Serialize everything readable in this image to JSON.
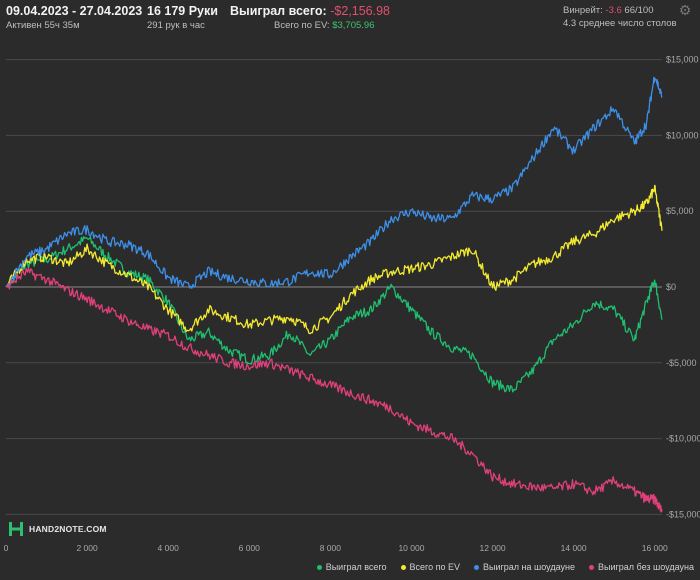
{
  "header": {
    "date_range": "09.04.2023 - 27.04.2023",
    "active_time": "Активен 55ч 35м",
    "hands": "16 179 Руки",
    "hands_per_hour": "291 рук в час",
    "won_total_label": "Выиграл всего:",
    "won_total_value": "-$2,156.98",
    "ev_total_label": "Всего по EV:",
    "ev_total_value": "$3,705.96",
    "winrate_label": "Винрейт:",
    "winrate_value": "-3.6",
    "winrate_suffix": "66/100",
    "avg_tables": "4.3 среднее число столов"
  },
  "logo": {
    "text": "HAND2NOTE.COM"
  },
  "colors": {
    "won": "#1fbf6f",
    "ev": "#f2ea2e",
    "showdown": "#3d8fe8",
    "non_showdown": "#e0407a",
    "grid": "#4a4a4a",
    "zero_line": "#8a8a8a"
  },
  "chart_data": {
    "type": "line",
    "x_ticks": [
      0,
      2000,
      4000,
      6000,
      8000,
      10000,
      12000,
      14000,
      16000
    ],
    "x_tick_labels": [
      "0",
      "2 000",
      "4 000",
      "6 000",
      "8 000",
      "10 000",
      "12 000",
      "14 000",
      "16 000"
    ],
    "y_ticks": [
      15000,
      10000,
      5000,
      0,
      -5000,
      -10000,
      -15000
    ],
    "y_tick_labels": [
      "$15,000",
      "$10,000",
      "$5,000",
      "$0",
      "-$5,000",
      "-$10,000",
      "-$15,000"
    ],
    "xlim": [
      0,
      16179
    ],
    "ylim": [
      -15500,
      15500
    ],
    "x": [
      0,
      500,
      1000,
      1500,
      2000,
      2500,
      3000,
      3500,
      4000,
      4500,
      5000,
      5500,
      6000,
      6500,
      7000,
      7500,
      8000,
      8500,
      9000,
      9500,
      10000,
      10500,
      11000,
      11500,
      12000,
      12500,
      13000,
      13500,
      14000,
      14500,
      15000,
      15500,
      15800,
      16000,
      16179
    ],
    "series": [
      {
        "name": "Выиграл всего",
        "color_key": "won",
        "values": [
          0,
          1500,
          1800,
          2500,
          3200,
          2000,
          1000,
          500,
          -1000,
          -3500,
          -3000,
          -4200,
          -4800,
          -4500,
          -3000,
          -4500,
          -3500,
          -2000,
          -1500,
          0,
          -1500,
          -3000,
          -4000,
          -4500,
          -6300,
          -6800,
          -5500,
          -3500,
          -2500,
          -1000,
          -1500,
          -3500,
          -1000,
          500,
          -2157
        ]
      },
      {
        "name": "Всего по EV",
        "color_key": "ev",
        "values": [
          0,
          1800,
          2000,
          1500,
          2500,
          1500,
          800,
          0,
          -1500,
          -2800,
          -1500,
          -2000,
          -2500,
          -2200,
          -2000,
          -2800,
          -2000,
          -500,
          500,
          1000,
          1200,
          1500,
          2000,
          2500,
          0,
          500,
          1500,
          2000,
          3000,
          3500,
          4500,
          5000,
          5500,
          6500,
          3706
        ]
      },
      {
        "name": "Выиграл на шоудауне",
        "color_key": "showdown",
        "values": [
          0,
          2000,
          2500,
          3500,
          3800,
          3000,
          2800,
          2200,
          600,
          0,
          1000,
          600,
          400,
          200,
          400,
          1000,
          800,
          2000,
          3000,
          4500,
          5000,
          4500,
          4500,
          6000,
          5800,
          6500,
          8500,
          10500,
          9000,
          10500,
          11800,
          9500,
          10800,
          14000,
          12500
        ]
      },
      {
        "name": "Выиграл без шоудауна",
        "color_key": "non_showdown",
        "values": [
          0,
          1000,
          500,
          -200,
          -800,
          -1500,
          -2200,
          -2800,
          -3200,
          -4000,
          -4500,
          -5000,
          -5200,
          -5000,
          -5500,
          -6000,
          -6500,
          -7000,
          -7500,
          -8000,
          -9000,
          -9500,
          -10000,
          -11000,
          -12500,
          -13000,
          -13200,
          -13300,
          -13000,
          -13500,
          -12800,
          -13500,
          -14000,
          -14000,
          -14800
        ]
      }
    ]
  }
}
